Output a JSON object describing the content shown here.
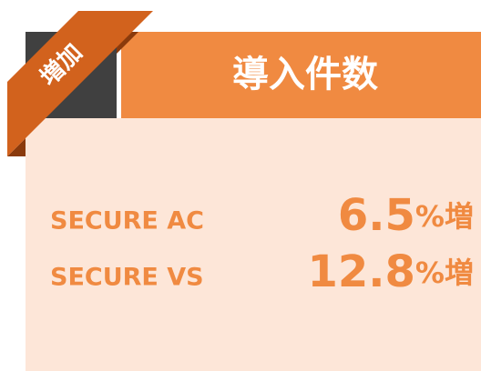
{
  "badge": "増加",
  "title": "導入件数",
  "rows": [
    {
      "name": "SECURE AC",
      "value": 6.5,
      "unit": "%増"
    },
    {
      "name": "SECURE VS",
      "value": 12.8,
      "unit": "%増"
    }
  ]
}
